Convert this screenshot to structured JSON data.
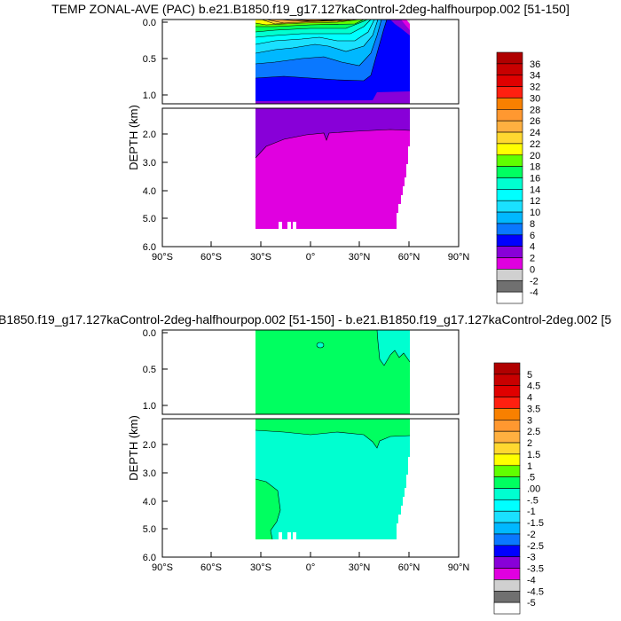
{
  "chart_data": [
    {
      "type": "heatmap",
      "title": "TEMP ZONAL-AVE (PAC) b.e21.B1850.f19_g17.127kaControl-2deg-halfhourpop.002 [51-150]",
      "ylabel": "DEPTH (km)",
      "xlabel": "",
      "x_ticks": [
        "90°S",
        "60°S",
        "30°S",
        "0°",
        "30°N",
        "60°N",
        "90°N"
      ],
      "y_ticks_upper": [
        "0.0",
        "0.5",
        "1.0"
      ],
      "y_ticks_lower": [
        "2.0",
        "3.0",
        "4.0",
        "5.0",
        "6.0"
      ],
      "xlim": [
        -90,
        90
      ],
      "ylim": [
        6.0,
        0.0
      ],
      "colorbar_labels": [
        "36",
        "34",
        "32",
        "30",
        "28",
        "26",
        "24",
        "22",
        "20",
        "18",
        "16",
        "14",
        "12",
        "10",
        "8",
        "6",
        "4",
        "2",
        "0",
        "-2",
        "-4"
      ],
      "legend_position": "right"
    },
    {
      "type": "heatmap",
      "title": "B1850.f19_g17.127kaControl-2deg-halfhourpop.002 [51-150] - b.e21.B1850.f19_g17.127kaControl-2deg.002 [5",
      "ylabel": "DEPTH (km)",
      "xlabel": "",
      "x_ticks": [
        "90°S",
        "60°S",
        "30°S",
        "0°",
        "30°N",
        "60°N",
        "90°N"
      ],
      "y_ticks_upper": [
        "0.0",
        "0.5",
        "1.0"
      ],
      "y_ticks_lower": [
        "2.0",
        "3.0",
        "4.0",
        "5.0",
        "6.0"
      ],
      "xlim": [
        -90,
        90
      ],
      "ylim": [
        6.0,
        0.0
      ],
      "colorbar_labels": [
        "5",
        "4.5",
        "4",
        "3.5",
        "3",
        "2.5",
        "2",
        "1.5",
        "1",
        ".5",
        ".00",
        "-.5",
        "-1",
        "-1.5",
        "-2",
        "-2.5",
        "-3",
        "-3.5",
        "-4",
        "-4.5",
        "-5"
      ],
      "legend_position": "right"
    }
  ],
  "colormap": [
    "#b00000",
    "#c80000",
    "#e00000",
    "#ff2010",
    "#f88000",
    "#ff9830",
    "#ffb040",
    "#ffd830",
    "#ffff00",
    "#60ff00",
    "#00ff60",
    "#00ffd0",
    "#00ffff",
    "#1ae0ff",
    "#00b8ff",
    "#0a78ff",
    "#0000ff",
    "#8800d8",
    "#e000e0",
    "#d0d0d0",
    "#707070",
    "#ffffff"
  ]
}
